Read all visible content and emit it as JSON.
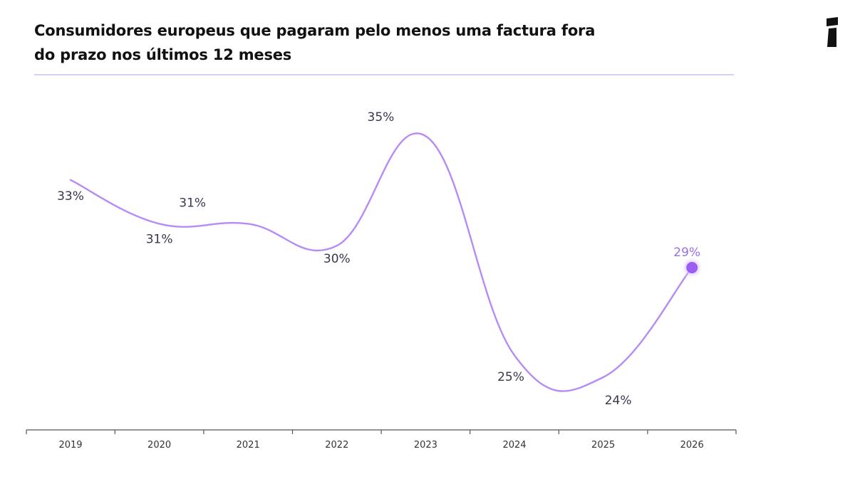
{
  "title": "Consumidores europeus que pagaram pelo menos uma factura fora do prazo nos últimos 12 meses",
  "logo_icon": "publisher-logo-icon",
  "colors": {
    "line": "#b58cf5",
    "highlight": "#9b5df2",
    "highlight_label": "#9b6df0",
    "label": "#3d3450",
    "axis": "#555555",
    "title_rule": "#d9cdf6"
  },
  "chart_data": {
    "type": "line",
    "title": "Consumidores europeus que pagaram pelo menos uma factura fora do prazo nos últimos 12 meses",
    "xlabel": "",
    "ylabel": "",
    "categories": [
      "2019",
      "2020",
      "2021",
      "2022",
      "2023",
      "2024",
      "2025",
      "2026"
    ],
    "values": [
      33,
      31,
      31,
      30,
      35,
      25,
      24,
      29
    ],
    "labels": [
      "33%",
      "31%",
      "31%",
      "30%",
      "35%",
      "25%",
      "24%",
      "29%"
    ],
    "highlight_last": true,
    "grid": false,
    "legend": "none"
  }
}
